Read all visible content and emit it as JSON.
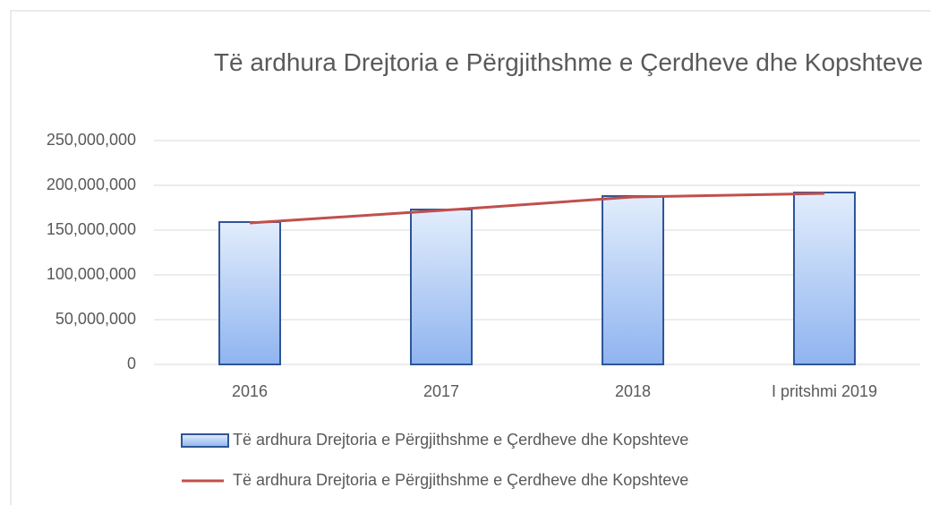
{
  "chart_data": {
    "type": "bar",
    "title": "Të ardhura Drejtoria e Përgjithshme e Çerdheve dhe Kopshteve",
    "categories": [
      "2016",
      "2017",
      "2018",
      "I pritshmi 2019"
    ],
    "series": [
      {
        "name": "Të ardhura Drejtoria e Përgjithshme e Çerdheve dhe Kopshteve",
        "type": "bar",
        "color": "#8fb4f0",
        "values": [
          159000000,
          173000000,
          188000000,
          192000000
        ]
      },
      {
        "name": "Të ardhura Drejtoria e Përgjithshme e Çerdheve dhe Kopshteve",
        "type": "line",
        "color": "#c0504d",
        "values": [
          158000000,
          172000000,
          187000000,
          191000000
        ]
      }
    ],
    "ylim": [
      0,
      250000000
    ],
    "yticks": [
      0,
      {
        "value": 50000000,
        "label": "50,000,000"
      },
      {
        "value": 100000000,
        "label": "100,000,000"
      },
      {
        "value": 150000000,
        "label": "150,000,000"
      },
      {
        "value": 200000000,
        "label": "200,000,000"
      },
      {
        "value": 250000000,
        "label": "250,000,000"
      }
    ],
    "grid": true,
    "legend": "bottom"
  }
}
